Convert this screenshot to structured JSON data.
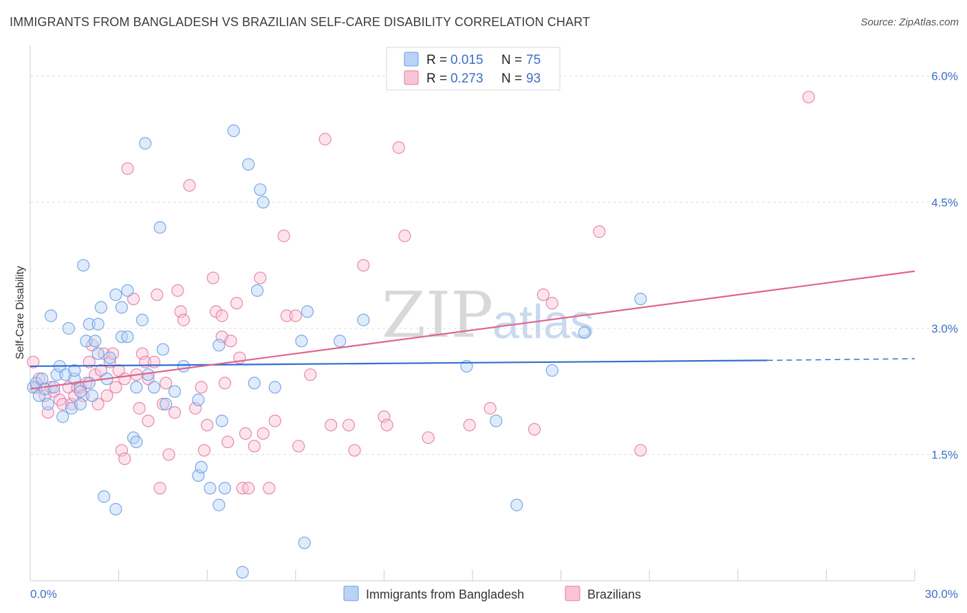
{
  "title": "IMMIGRANTS FROM BANGLADESH VS BRAZILIAN SELF-CARE DISABILITY CORRELATION CHART",
  "source": "Source: ZipAtlas.com",
  "watermark": {
    "zip": "ZIP",
    "atlas": "atlas"
  },
  "legend": {
    "r_label": "R =",
    "n_label": "N =",
    "series": [
      {
        "r": "0.015",
        "n": "75",
        "color": "#6a9ee6",
        "fill": "#b8d3f5"
      },
      {
        "r": "0.273",
        "n": "93",
        "color": "#e87aa0",
        "fill": "#f8c4d6"
      }
    ]
  },
  "chart_data": {
    "type": "scatter",
    "title": "IMMIGRANTS FROM BANGLADESH VS BRAZILIAN SELF-CARE DISABILITY CORRELATION CHART",
    "xlabel": "",
    "ylabel": "Self-Care Disability",
    "xlim": [
      0,
      30
    ],
    "ylim": [
      0,
      6.3
    ],
    "x_tick_labels": [
      "0.0%",
      "30.0%"
    ],
    "y_ticks": [
      1.5,
      3.0,
      4.5,
      6.0
    ],
    "y_tick_labels": [
      "1.5%",
      "3.0%",
      "4.5%",
      "6.0%"
    ],
    "grid": true,
    "legend_position": "top-center",
    "series": [
      {
        "name": "Immigrants from Bangladesh",
        "color": "#6a9ee6",
        "trend": {
          "x0": 0,
          "y0": 2.55,
          "x1": 25,
          "y1": 2.62,
          "x_dash_end": 30,
          "y_dash_end": 2.64
        },
        "points": [
          [
            0.1,
            2.3
          ],
          [
            0.2,
            2.35
          ],
          [
            0.3,
            2.2
          ],
          [
            0.4,
            2.4
          ],
          [
            0.5,
            2.28
          ],
          [
            0.6,
            2.1
          ],
          [
            0.7,
            3.15
          ],
          [
            0.8,
            2.3
          ],
          [
            0.9,
            2.45
          ],
          [
            1.0,
            2.55
          ],
          [
            1.1,
            1.95
          ],
          [
            1.2,
            2.45
          ],
          [
            1.3,
            3.0
          ],
          [
            1.4,
            2.05
          ],
          [
            1.5,
            2.4
          ],
          [
            1.5,
            2.5
          ],
          [
            1.7,
            2.25
          ],
          [
            1.7,
            2.1
          ],
          [
            1.8,
            3.75
          ],
          [
            1.9,
            2.85
          ],
          [
            2.0,
            2.35
          ],
          [
            2.0,
            3.05
          ],
          [
            2.1,
            2.2
          ],
          [
            2.2,
            2.85
          ],
          [
            2.3,
            3.05
          ],
          [
            2.3,
            2.7
          ],
          [
            2.4,
            3.25
          ],
          [
            2.5,
            1.0
          ],
          [
            2.6,
            2.4
          ],
          [
            2.7,
            2.65
          ],
          [
            2.9,
            0.85
          ],
          [
            2.9,
            3.4
          ],
          [
            3.1,
            3.25
          ],
          [
            3.1,
            2.9
          ],
          [
            3.3,
            3.45
          ],
          [
            3.3,
            2.9
          ],
          [
            3.5,
            1.7
          ],
          [
            3.6,
            2.3
          ],
          [
            3.6,
            1.65
          ],
          [
            3.8,
            3.1
          ],
          [
            3.9,
            5.2
          ],
          [
            4.0,
            2.45
          ],
          [
            4.2,
            2.3
          ],
          [
            4.4,
            4.2
          ],
          [
            4.5,
            2.75
          ],
          [
            4.6,
            2.1
          ],
          [
            4.9,
            2.25
          ],
          [
            5.2,
            2.55
          ],
          [
            5.7,
            1.25
          ],
          [
            5.7,
            2.15
          ],
          [
            5.8,
            1.35
          ],
          [
            6.1,
            1.1
          ],
          [
            6.4,
            2.8
          ],
          [
            6.4,
            0.9
          ],
          [
            6.5,
            1.9
          ],
          [
            6.6,
            1.1
          ],
          [
            6.9,
            5.35
          ],
          [
            7.2,
            0.1
          ],
          [
            7.4,
            4.95
          ],
          [
            7.6,
            2.35
          ],
          [
            7.7,
            3.45
          ],
          [
            7.8,
            4.65
          ],
          [
            7.9,
            4.5
          ],
          [
            8.3,
            2.3
          ],
          [
            9.2,
            2.85
          ],
          [
            9.4,
            3.2
          ],
          [
            9.3,
            0.45
          ],
          [
            10.5,
            2.85
          ],
          [
            11.3,
            3.1
          ],
          [
            14.8,
            2.55
          ],
          [
            15.8,
            1.9
          ],
          [
            16.5,
            0.9
          ],
          [
            17.7,
            2.5
          ],
          [
            18.8,
            2.95
          ],
          [
            20.7,
            3.35
          ]
        ]
      },
      {
        "name": "Brazilians",
        "color": "#e87aa0",
        "trend": {
          "x0": 0,
          "y0": 2.28,
          "x1": 30,
          "y1": 3.68
        },
        "points": [
          [
            0.1,
            2.6
          ],
          [
            0.2,
            2.3
          ],
          [
            0.3,
            2.4
          ],
          [
            0.5,
            2.2
          ],
          [
            0.6,
            2.0
          ],
          [
            0.7,
            2.3
          ],
          [
            0.8,
            2.25
          ],
          [
            1.0,
            2.15
          ],
          [
            1.1,
            2.1
          ],
          [
            1.3,
            2.3
          ],
          [
            1.4,
            2.1
          ],
          [
            1.5,
            2.2
          ],
          [
            1.6,
            2.3
          ],
          [
            1.7,
            2.3
          ],
          [
            1.8,
            2.2
          ],
          [
            1.9,
            2.35
          ],
          [
            2.0,
            2.6
          ],
          [
            2.1,
            2.8
          ],
          [
            2.2,
            2.45
          ],
          [
            2.3,
            2.1
          ],
          [
            2.4,
            2.5
          ],
          [
            2.5,
            2.7
          ],
          [
            2.6,
            2.2
          ],
          [
            2.7,
            2.6
          ],
          [
            2.8,
            2.7
          ],
          [
            2.9,
            2.3
          ],
          [
            3.0,
            2.5
          ],
          [
            3.1,
            1.55
          ],
          [
            3.2,
            2.4
          ],
          [
            3.2,
            1.45
          ],
          [
            3.3,
            4.9
          ],
          [
            3.5,
            3.35
          ],
          [
            3.7,
            2.05
          ],
          [
            3.8,
            2.7
          ],
          [
            3.9,
            2.6
          ],
          [
            4.0,
            1.9
          ],
          [
            4.0,
            2.4
          ],
          [
            4.2,
            2.6
          ],
          [
            4.3,
            3.4
          ],
          [
            4.4,
            1.1
          ],
          [
            4.5,
            2.1
          ],
          [
            4.6,
            2.35
          ],
          [
            4.7,
            1.5
          ],
          [
            4.9,
            2.0
          ],
          [
            5.0,
            3.45
          ],
          [
            5.1,
            3.2
          ],
          [
            5.2,
            3.1
          ],
          [
            5.4,
            4.7
          ],
          [
            5.6,
            2.05
          ],
          [
            5.8,
            2.3
          ],
          [
            5.9,
            1.55
          ],
          [
            6.0,
            1.85
          ],
          [
            6.2,
            3.6
          ],
          [
            6.3,
            3.2
          ],
          [
            6.5,
            2.9
          ],
          [
            6.5,
            3.15
          ],
          [
            6.6,
            2.35
          ],
          [
            6.7,
            1.65
          ],
          [
            6.8,
            2.85
          ],
          [
            7.0,
            3.3
          ],
          [
            7.1,
            2.65
          ],
          [
            7.2,
            1.1
          ],
          [
            7.3,
            1.75
          ],
          [
            7.4,
            1.1
          ],
          [
            7.6,
            1.6
          ],
          [
            7.8,
            3.6
          ],
          [
            7.9,
            1.75
          ],
          [
            8.1,
            1.1
          ],
          [
            8.3,
            1.9
          ],
          [
            8.6,
            4.1
          ],
          [
            8.7,
            3.15
          ],
          [
            9.0,
            3.15
          ],
          [
            9.1,
            1.6
          ],
          [
            9.5,
            2.45
          ],
          [
            10.0,
            5.25
          ],
          [
            10.2,
            1.85
          ],
          [
            10.8,
            1.85
          ],
          [
            11.0,
            1.55
          ],
          [
            11.3,
            3.75
          ],
          [
            12.0,
            1.95
          ],
          [
            12.1,
            1.85
          ],
          [
            12.5,
            5.15
          ],
          [
            12.7,
            4.1
          ],
          [
            13.5,
            1.7
          ],
          [
            14.9,
            1.85
          ],
          [
            15.6,
            2.05
          ],
          [
            17.1,
            1.8
          ],
          [
            17.4,
            3.4
          ],
          [
            17.7,
            3.3
          ],
          [
            19.3,
            4.15
          ],
          [
            20.7,
            1.55
          ],
          [
            26.4,
            5.75
          ],
          [
            3.6,
            2.45
          ]
        ]
      }
    ]
  }
}
